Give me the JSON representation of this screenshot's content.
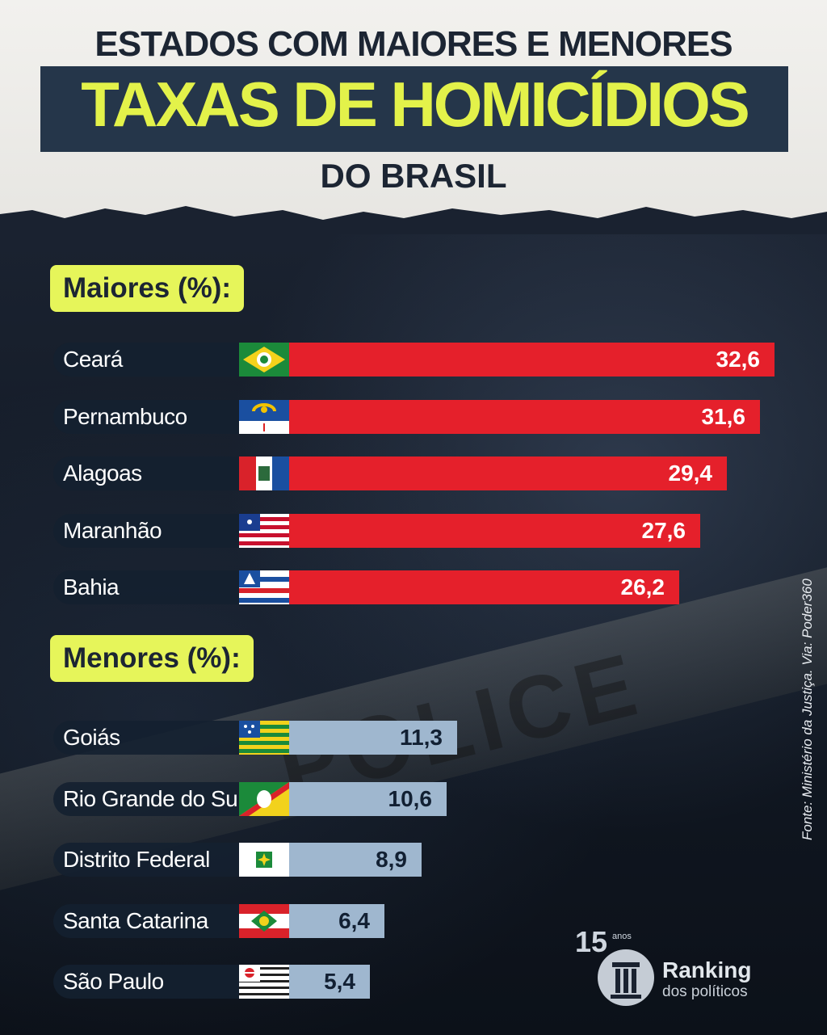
{
  "header": {
    "line1": "ESTADOS COM MAIORES E MENORES",
    "line2": "TAXAS DE HOMICÍDIOS",
    "line3": "DO BRASIL"
  },
  "sections": {
    "maiores_label": "Maiores (%):",
    "menores_label": "Menores (%):"
  },
  "source": "Fonte: Ministério da Justiça. Via: Poder360",
  "logo": {
    "number": "15",
    "years": "anos",
    "name": "Ranking",
    "sub": "dos políticos"
  },
  "colors": {
    "high_bar": "#e5202b",
    "low_bar": "#9fb7cf",
    "accent": "#e6f55a",
    "title_band": "#25364a"
  },
  "chart_data": [
    {
      "type": "bar",
      "title": "Maiores (%):",
      "orientation": "horizontal",
      "categories": [
        "Ceará",
        "Pernambuco",
        "Alagoas",
        "Maranhão",
        "Bahia"
      ],
      "labels": [
        "32,6",
        "31,6",
        "29,4",
        "27,6",
        "26,2"
      ],
      "values": [
        32.6,
        31.6,
        29.4,
        27.6,
        26.2
      ],
      "flags": [
        "ceara-flag",
        "pernambuco-flag",
        "alagoas-flag",
        "maranhao-flag",
        "bahia-flag"
      ]
    },
    {
      "type": "bar",
      "title": "Menores (%):",
      "orientation": "horizontal",
      "categories": [
        "Goiás",
        "Rio Grande do Sul",
        "Distrito Federal",
        "Santa Catarina",
        "São Paulo"
      ],
      "labels": [
        "11,3",
        "10,6",
        "8,9",
        "6,4",
        "5,4"
      ],
      "values": [
        11.3,
        10.6,
        8.9,
        6.4,
        5.4
      ],
      "flags": [
        "goias-flag",
        "rio-grande-do-sul-flag",
        "distrito-federal-flag",
        "santa-catarina-flag",
        "sao-paulo-flag"
      ]
    }
  ]
}
